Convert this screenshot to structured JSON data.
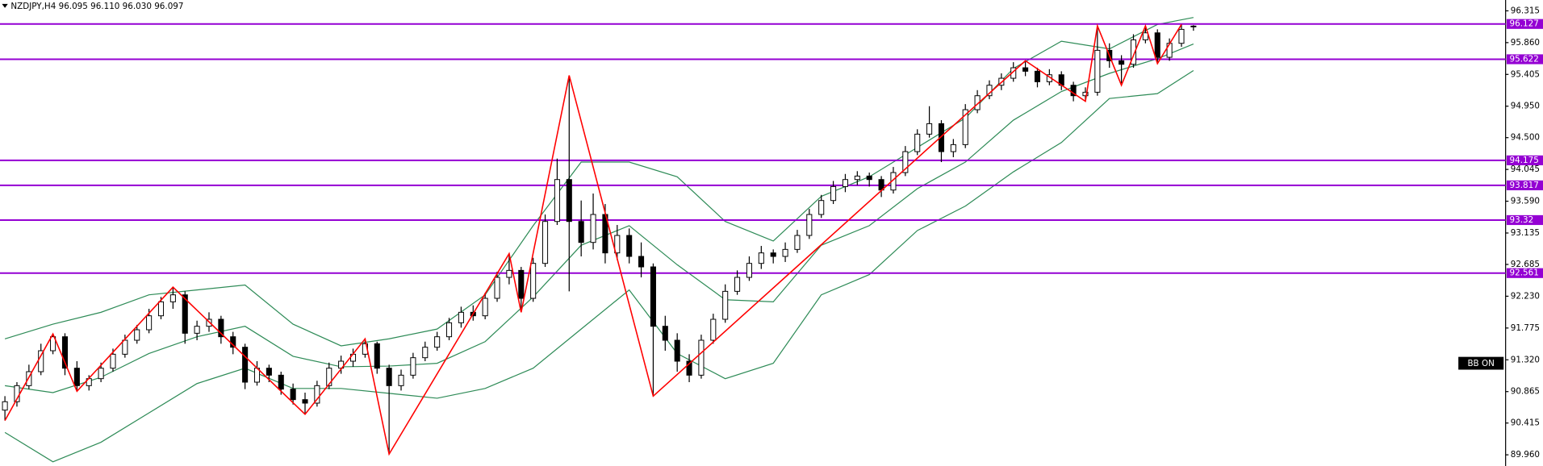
{
  "chart_data": {
    "type": "candlestick",
    "title": "NZDJPY,H4  96.095 96.110 96.030 96.097",
    "annotation": "BB ON",
    "ylim": [
      89.8,
      96.47
    ],
    "yticks": [
      96.315,
      {
        "value": 95.86,
        "label": "95.860"
      },
      95.405,
      {
        "value": 94.95,
        "label": "94.950"
      },
      {
        "value": 94.5,
        "label": "94.500"
      },
      94.045,
      {
        "value": 93.59,
        "label": "93.590"
      },
      93.135,
      92.685,
      {
        "value": 92.23,
        "label": "92.230"
      },
      91.775,
      {
        "value": 91.32,
        "label": "91.320"
      },
      90.865,
      90.415,
      {
        "value": 89.96,
        "label": "89.960"
      }
    ],
    "colors": {
      "up": "#ffffff",
      "down": "#000000",
      "outline": "#000000"
    },
    "candles": [
      [
        90.6,
        90.8,
        90.45,
        90.72
      ],
      [
        90.72,
        91.0,
        90.65,
        90.95
      ],
      [
        90.95,
        91.25,
        90.9,
        91.15
      ],
      [
        91.15,
        91.55,
        91.1,
        91.45
      ],
      [
        91.45,
        91.69,
        91.4,
        91.65
      ],
      [
        91.65,
        91.7,
        91.1,
        91.2
      ],
      [
        91.2,
        91.3,
        90.87,
        90.95
      ],
      [
        90.95,
        91.1,
        90.88,
        91.05
      ],
      [
        91.05,
        91.28,
        91.0,
        91.2
      ],
      [
        91.2,
        91.48,
        91.15,
        91.4
      ],
      [
        91.4,
        91.68,
        91.35,
        91.6
      ],
      [
        91.6,
        91.82,
        91.55,
        91.75
      ],
      [
        91.75,
        92.05,
        91.7,
        91.95
      ],
      [
        91.95,
        92.22,
        91.9,
        92.15
      ],
      [
        92.15,
        92.36,
        92.05,
        92.25
      ],
      [
        92.25,
        92.3,
        91.55,
        91.7
      ],
      [
        91.7,
        91.88,
        91.6,
        91.8
      ],
      [
        91.8,
        92.0,
        91.72,
        91.9
      ],
      [
        91.9,
        91.95,
        91.55,
        91.65
      ],
      [
        91.65,
        91.72,
        91.4,
        91.5
      ],
      [
        91.5,
        91.55,
        90.9,
        91.0
      ],
      [
        91.0,
        91.3,
        90.95,
        91.2
      ],
      [
        91.2,
        91.25,
        91.0,
        91.1
      ],
      [
        91.1,
        91.15,
        90.82,
        90.9
      ],
      [
        90.9,
        90.98,
        90.68,
        90.75
      ],
      [
        90.75,
        90.85,
        90.54,
        90.7
      ],
      [
        90.7,
        91.02,
        90.65,
        90.95
      ],
      [
        90.95,
        91.28,
        90.9,
        91.2
      ],
      [
        91.2,
        91.38,
        91.12,
        91.3
      ],
      [
        91.3,
        91.48,
        91.22,
        91.4
      ],
      [
        91.4,
        91.62,
        91.35,
        91.55
      ],
      [
        91.55,
        91.58,
        91.12,
        91.2
      ],
      [
        91.2,
        91.25,
        89.97,
        90.95
      ],
      [
        90.95,
        91.18,
        90.88,
        91.1
      ],
      [
        91.1,
        91.42,
        91.05,
        91.35
      ],
      [
        91.35,
        91.58,
        91.3,
        91.5
      ],
      [
        91.5,
        91.72,
        91.45,
        91.65
      ],
      [
        91.65,
        91.92,
        91.6,
        91.85
      ],
      [
        91.85,
        92.08,
        91.78,
        92.0
      ],
      [
        92.0,
        92.1,
        91.88,
        91.95
      ],
      [
        91.95,
        92.28,
        91.9,
        92.2
      ],
      [
        92.2,
        92.58,
        92.15,
        92.5
      ],
      [
        92.5,
        92.84,
        92.4,
        92.6
      ],
      [
        92.6,
        92.65,
        92.0,
        92.2
      ],
      [
        92.2,
        92.78,
        92.15,
        92.7
      ],
      [
        92.7,
        93.4,
        92.65,
        93.3
      ],
      [
        93.3,
        94.2,
        93.25,
        93.9
      ],
      [
        93.9,
        95.39,
        92.3,
        93.3
      ],
      [
        93.3,
        93.6,
        92.8,
        93.0
      ],
      [
        93.0,
        93.7,
        92.9,
        93.4
      ],
      [
        93.4,
        93.55,
        92.7,
        92.85
      ],
      [
        92.85,
        93.25,
        92.75,
        93.1
      ],
      [
        93.1,
        93.2,
        92.7,
        92.8
      ],
      [
        92.8,
        93.0,
        92.5,
        92.65
      ],
      [
        92.65,
        92.7,
        90.8,
        91.8
      ],
      [
        91.8,
        91.95,
        91.45,
        91.6
      ],
      [
        91.6,
        91.7,
        91.15,
        91.3
      ],
      [
        91.3,
        91.4,
        91.0,
        91.1
      ],
      [
        91.1,
        91.68,
        91.05,
        91.6
      ],
      [
        91.6,
        91.98,
        91.55,
        91.9
      ],
      [
        91.9,
        92.4,
        91.85,
        92.3
      ],
      [
        92.3,
        92.6,
        92.25,
        92.5
      ],
      [
        92.5,
        92.8,
        92.45,
        92.7
      ],
      [
        92.7,
        92.95,
        92.62,
        92.85
      ],
      [
        92.85,
        92.9,
        92.7,
        92.8
      ],
      [
        92.8,
        93.0,
        92.72,
        92.9
      ],
      [
        92.9,
        93.18,
        92.85,
        93.1
      ],
      [
        93.1,
        93.48,
        93.05,
        93.4
      ],
      [
        93.4,
        93.68,
        93.35,
        93.6
      ],
      [
        93.6,
        93.88,
        93.55,
        93.8
      ],
      [
        93.8,
        93.98,
        93.72,
        93.9
      ],
      [
        93.9,
        94.02,
        93.82,
        93.95
      ],
      [
        93.95,
        94.0,
        93.8,
        93.9
      ],
      [
        93.9,
        93.95,
        93.65,
        93.75
      ],
      [
        93.75,
        94.08,
        93.7,
        94.0
      ],
      [
        94.0,
        94.38,
        93.95,
        94.3
      ],
      [
        94.3,
        94.62,
        94.25,
        94.55
      ],
      [
        94.55,
        94.95,
        94.5,
        94.7
      ],
      [
        94.7,
        94.75,
        94.15,
        94.3
      ],
      [
        94.3,
        94.48,
        94.22,
        94.4
      ],
      [
        94.4,
        94.98,
        94.35,
        94.9
      ],
      [
        94.9,
        95.18,
        94.85,
        95.1
      ],
      [
        95.1,
        95.32,
        95.05,
        95.25
      ],
      [
        95.25,
        95.42,
        95.18,
        95.35
      ],
      [
        95.35,
        95.58,
        95.3,
        95.5
      ],
      [
        95.5,
        95.6,
        95.38,
        95.45
      ],
      [
        95.45,
        95.5,
        95.22,
        95.3
      ],
      [
        95.3,
        95.48,
        95.25,
        95.4
      ],
      [
        95.4,
        95.45,
        95.18,
        95.25
      ],
      [
        95.25,
        95.3,
        95.02,
        95.1
      ],
      [
        95.1,
        95.22,
        95.02,
        95.15
      ],
      [
        95.15,
        96.1,
        95.1,
        95.75
      ],
      [
        95.75,
        95.85,
        95.5,
        95.6
      ],
      [
        95.6,
        95.68,
        95.25,
        95.55
      ],
      [
        95.55,
        95.98,
        95.5,
        95.9
      ],
      [
        95.9,
        96.1,
        95.85,
        96.0
      ],
      [
        96.0,
        96.05,
        95.56,
        95.65
      ],
      [
        95.65,
        95.92,
        95.6,
        95.85
      ],
      [
        95.85,
        96.12,
        95.8,
        96.05
      ],
      [
        96.095,
        96.11,
        96.03,
        96.097
      ]
    ],
    "bollinger": {
      "color": "#2e8b57",
      "x": [
        0,
        4,
        8,
        12,
        16,
        20,
        24,
        28,
        32,
        36,
        40,
        44,
        48,
        52,
        56,
        60,
        64,
        68,
        72,
        76,
        80,
        84,
        88,
        92,
        96,
        99
      ],
      "upper": [
        91.62,
        91.83,
        92.0,
        92.25,
        92.32,
        92.39,
        91.83,
        91.52,
        91.62,
        91.76,
        92.25,
        93.24,
        94.15,
        94.15,
        93.94,
        93.3,
        93.02,
        93.66,
        93.94,
        94.36,
        94.78,
        95.49,
        95.88,
        95.77,
        96.12,
        96.22
      ],
      "middle": [
        90.95,
        90.85,
        91.07,
        91.41,
        91.65,
        91.8,
        91.37,
        91.22,
        91.23,
        91.27,
        91.58,
        92.22,
        92.96,
        93.24,
        92.68,
        92.18,
        92.15,
        92.96,
        93.24,
        93.77,
        94.15,
        94.75,
        95.16,
        95.42,
        95.63,
        95.84
      ],
      "lower": [
        90.28,
        89.86,
        90.14,
        90.56,
        90.98,
        91.2,
        90.91,
        90.91,
        90.84,
        90.77,
        90.91,
        91.2,
        91.76,
        92.32,
        91.41,
        91.05,
        91.27,
        92.25,
        92.54,
        93.17,
        93.52,
        94.01,
        94.43,
        95.06,
        95.13,
        95.46
      ]
    },
    "zigzag": {
      "color": "#ff0000",
      "x": [
        0,
        4,
        6,
        14,
        25,
        30,
        32,
        42,
        43,
        47,
        54,
        85,
        90,
        91,
        93,
        95,
        96,
        98
      ],
      "values": [
        90.45,
        91.69,
        90.87,
        92.36,
        90.54,
        91.62,
        89.97,
        92.84,
        92.0,
        95.39,
        90.8,
        95.6,
        95.02,
        96.1,
        95.25,
        96.1,
        95.56,
        96.12
      ]
    },
    "levels": {
      "color": "#9400d3",
      "values": [
        96.127,
        95.622,
        94.175,
        93.817,
        93.32,
        92.561
      ]
    }
  }
}
